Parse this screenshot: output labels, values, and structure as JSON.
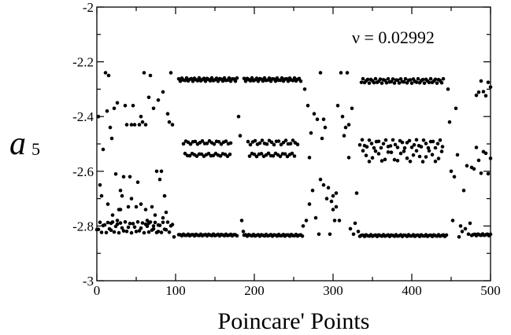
{
  "chart_data": {
    "type": "scatter",
    "xlabel": "Poincare' Points",
    "ylabel": "a",
    "ylabel_subscript": "5",
    "annotation": "ν = 0.02992",
    "xlim": [
      0,
      500
    ],
    "ylim": [
      -3,
      -2
    ],
    "x_ticks": [
      "0",
      "100",
      "200",
      "300",
      "400",
      "500"
    ],
    "y_ticks": [
      "-3",
      "-2.8",
      "-2.6",
      "-2.4",
      "-2.2",
      "-2"
    ],
    "grid": false,
    "legend": "none",
    "bands": [
      {
        "x_start": 104,
        "x_end": 178,
        "step": 2,
        "y": -2.265,
        "jitter": 0.006
      },
      {
        "x_start": 187,
        "x_end": 260,
        "step": 2,
        "y": -2.265,
        "jitter": 0.006
      },
      {
        "x_start": 336,
        "x_end": 440,
        "step": 2,
        "y": -2.27,
        "jitter": 0.008
      },
      {
        "x_start": 104,
        "x_end": 178,
        "step": 2,
        "y": -2.833,
        "jitter": 0.003
      },
      {
        "x_start": 187,
        "x_end": 262,
        "step": 2,
        "y": -2.834,
        "jitter": 0.003
      },
      {
        "x_start": 334,
        "x_end": 445,
        "step": 2,
        "y": -2.835,
        "jitter": 0.003
      },
      {
        "x_start": 476,
        "x_end": 500,
        "step": 2,
        "y": -2.832,
        "jitter": 0.003
      },
      {
        "x_start": 110,
        "x_end": 172,
        "step": 3,
        "y": -2.495,
        "jitter": 0.006
      },
      {
        "x_start": 112,
        "x_end": 170,
        "step": 3,
        "y": -2.54,
        "jitter": 0.005
      },
      {
        "x_start": 192,
        "x_end": 255,
        "step": 3,
        "y": -2.495,
        "jitter": 0.008
      },
      {
        "x_start": 194,
        "x_end": 252,
        "step": 3,
        "y": -2.54,
        "jitter": 0.006
      },
      {
        "x_start": 334,
        "x_end": 440,
        "step": 3,
        "y": -2.5,
        "jitter": 0.015
      },
      {
        "x_start": 338,
        "x_end": 438,
        "step": 4,
        "y": -2.545,
        "jitter": 0.02
      },
      {
        "x_start": 0,
        "x_end": 96,
        "step": 2,
        "y": -2.805,
        "jitter": 0.02
      },
      {
        "x_start": 482,
        "x_end": 500,
        "step": 3,
        "y": -2.3,
        "jitter": 0.03
      },
      {
        "x_start": 476,
        "x_end": 500,
        "step": 3,
        "y": -2.56,
        "jitter": 0.05
      }
    ],
    "points": [
      [
        2,
        -2.4
      ],
      [
        4,
        -2.65
      ],
      [
        6,
        -2.69
      ],
      [
        8,
        -2.52
      ],
      [
        11,
        -2.24
      ],
      [
        13,
        -2.38
      ],
      [
        15,
        -2.25
      ],
      [
        17,
        -2.44
      ],
      [
        19,
        -2.48
      ],
      [
        22,
        -2.37
      ],
      [
        24,
        -2.61
      ],
      [
        26,
        -2.35
      ],
      [
        28,
        -2.74
      ],
      [
        30,
        -2.67
      ],
      [
        32,
        -2.69
      ],
      [
        34,
        -2.62
      ],
      [
        36,
        -2.36
      ],
      [
        38,
        -2.43
      ],
      [
        40,
        -2.73
      ],
      [
        42,
        -2.62
      ],
      [
        44,
        -2.43
      ],
      [
        46,
        -2.36
      ],
      [
        48,
        -2.43
      ],
      [
        50,
        -2.73
      ],
      [
        52,
        -2.64
      ],
      [
        54,
        -2.43
      ],
      [
        56,
        -2.4
      ],
      [
        58,
        -2.42
      ],
      [
        60,
        -2.24
      ],
      [
        62,
        -2.43
      ],
      [
        64,
        -2.78
      ],
      [
        66,
        -2.33
      ],
      [
        68,
        -2.25
      ],
      [
        70,
        -2.73
      ],
      [
        72,
        -2.37
      ],
      [
        74,
        -2.76
      ],
      [
        76,
        -2.6
      ],
      [
        78,
        -2.34
      ],
      [
        80,
        -2.63
      ],
      [
        82,
        -2.6
      ],
      [
        84,
        -2.31
      ],
      [
        86,
        -2.69
      ],
      [
        88,
        -2.75
      ],
      [
        90,
        -2.39
      ],
      [
        92,
        -2.42
      ],
      [
        94,
        -2.24
      ],
      [
        96,
        -2.43
      ],
      [
        98,
        -2.84
      ],
      [
        14,
        -2.72
      ],
      [
        18,
        -2.79
      ],
      [
        20,
        -2.76
      ],
      [
        26,
        -2.78
      ],
      [
        30,
        -2.74
      ],
      [
        44,
        -2.7
      ],
      [
        56,
        -2.72
      ],
      [
        62,
        -2.74
      ],
      [
        66,
        -2.79
      ],
      [
        72,
        -2.8
      ],
      [
        78,
        -2.82
      ],
      [
        84,
        -2.77
      ],
      [
        180,
        -2.4
      ],
      [
        182,
        -2.47
      ],
      [
        184,
        -2.78
      ],
      [
        186,
        -2.82
      ],
      [
        262,
        -2.8
      ],
      [
        264,
        -2.3
      ],
      [
        266,
        -2.78
      ],
      [
        268,
        -2.36
      ],
      [
        270,
        -2.72
      ],
      [
        272,
        -2.46
      ],
      [
        274,
        -2.67
      ],
      [
        276,
        -2.39
      ],
      [
        278,
        -2.77
      ],
      [
        280,
        -2.41
      ],
      [
        282,
        -2.83
      ],
      [
        284,
        -2.24
      ],
      [
        286,
        -2.48
      ],
      [
        288,
        -2.41
      ],
      [
        290,
        -2.44
      ],
      [
        292,
        -2.7
      ],
      [
        294,
        -2.66
      ],
      [
        296,
        -2.83
      ],
      [
        298,
        -2.71
      ],
      [
        300,
        -2.69
      ],
      [
        302,
        -2.78
      ],
      [
        304,
        -2.73
      ],
      [
        306,
        -2.36
      ],
      [
        308,
        -2.78
      ],
      [
        310,
        -2.24
      ],
      [
        312,
        -2.4
      ],
      [
        314,
        -2.47
      ],
      [
        316,
        -2.44
      ],
      [
        318,
        -2.24
      ],
      [
        320,
        -2.43
      ],
      [
        322,
        -2.81
      ],
      [
        324,
        -2.37
      ],
      [
        326,
        -2.83
      ],
      [
        328,
        -2.79
      ],
      [
        330,
        -2.68
      ],
      [
        332,
        -2.82
      ],
      [
        284,
        -2.63
      ],
      [
        288,
        -2.65
      ],
      [
        300,
        -2.74
      ],
      [
        304,
        -2.68
      ],
      [
        270,
        -2.55
      ],
      [
        320,
        -2.55
      ],
      [
        446,
        -2.3
      ],
      [
        448,
        -2.42
      ],
      [
        450,
        -2.6
      ],
      [
        452,
        -2.78
      ],
      [
        454,
        -2.62
      ],
      [
        456,
        -2.37
      ],
      [
        458,
        -2.54
      ],
      [
        460,
        -2.84
      ],
      [
        462,
        -2.8
      ],
      [
        464,
        -2.82
      ],
      [
        466,
        -2.67
      ],
      [
        468,
        -2.81
      ],
      [
        470,
        -2.58
      ],
      [
        472,
        -2.83
      ],
      [
        474,
        -2.79
      ]
    ]
  }
}
